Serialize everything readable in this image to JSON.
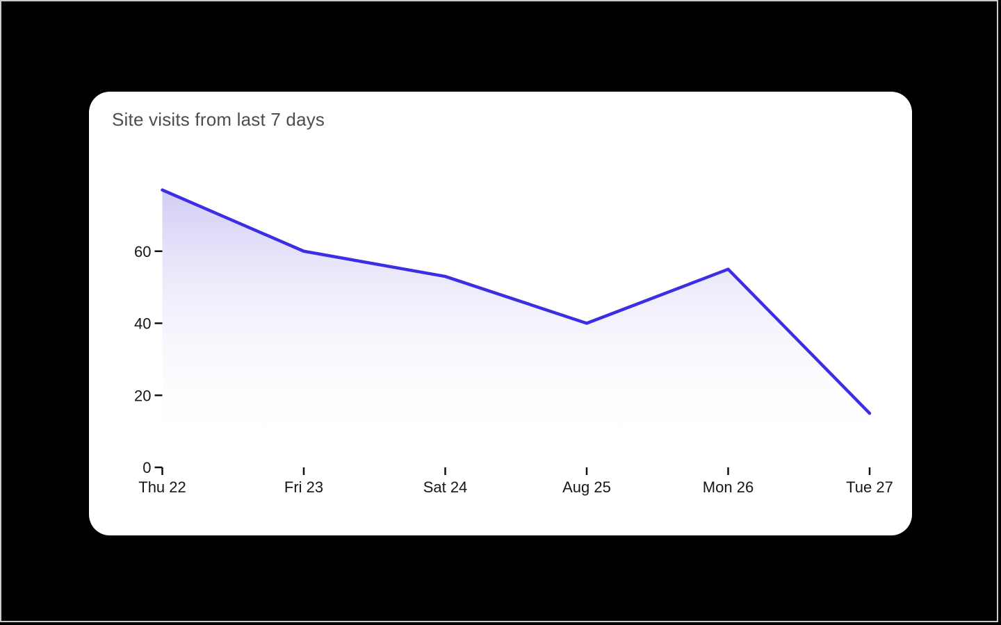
{
  "page": {
    "background_color": "#000000",
    "frame_border_color": "#cbcbcb"
  },
  "card": {
    "background_color": "#ffffff",
    "title": "Site visits from last 7 days",
    "title_color": "#4d4d4d"
  },
  "chart_data": {
    "type": "area",
    "title": "Site visits from last 7 days",
    "categories": [
      "Thu 22",
      "Fri 23",
      "Sat 24",
      "Aug 25",
      "Mon 26",
      "Tue 27"
    ],
    "values": [
      77,
      60,
      53,
      40,
      55,
      15
    ],
    "xlabel": "",
    "ylabel": "",
    "y_ticks": [
      0,
      20,
      40,
      60
    ],
    "y_tick_labels": [
      "0",
      "20",
      "40",
      "60"
    ],
    "ylim": [
      0,
      80
    ],
    "grid": false,
    "legend": false,
    "line_color": "#3b2ee3",
    "line_width": 4.5,
    "fill_top_color": "#d1cdf4",
    "fill_fade_to": "#ffffff",
    "axis_color": "#111111",
    "label_color": "#161616"
  }
}
